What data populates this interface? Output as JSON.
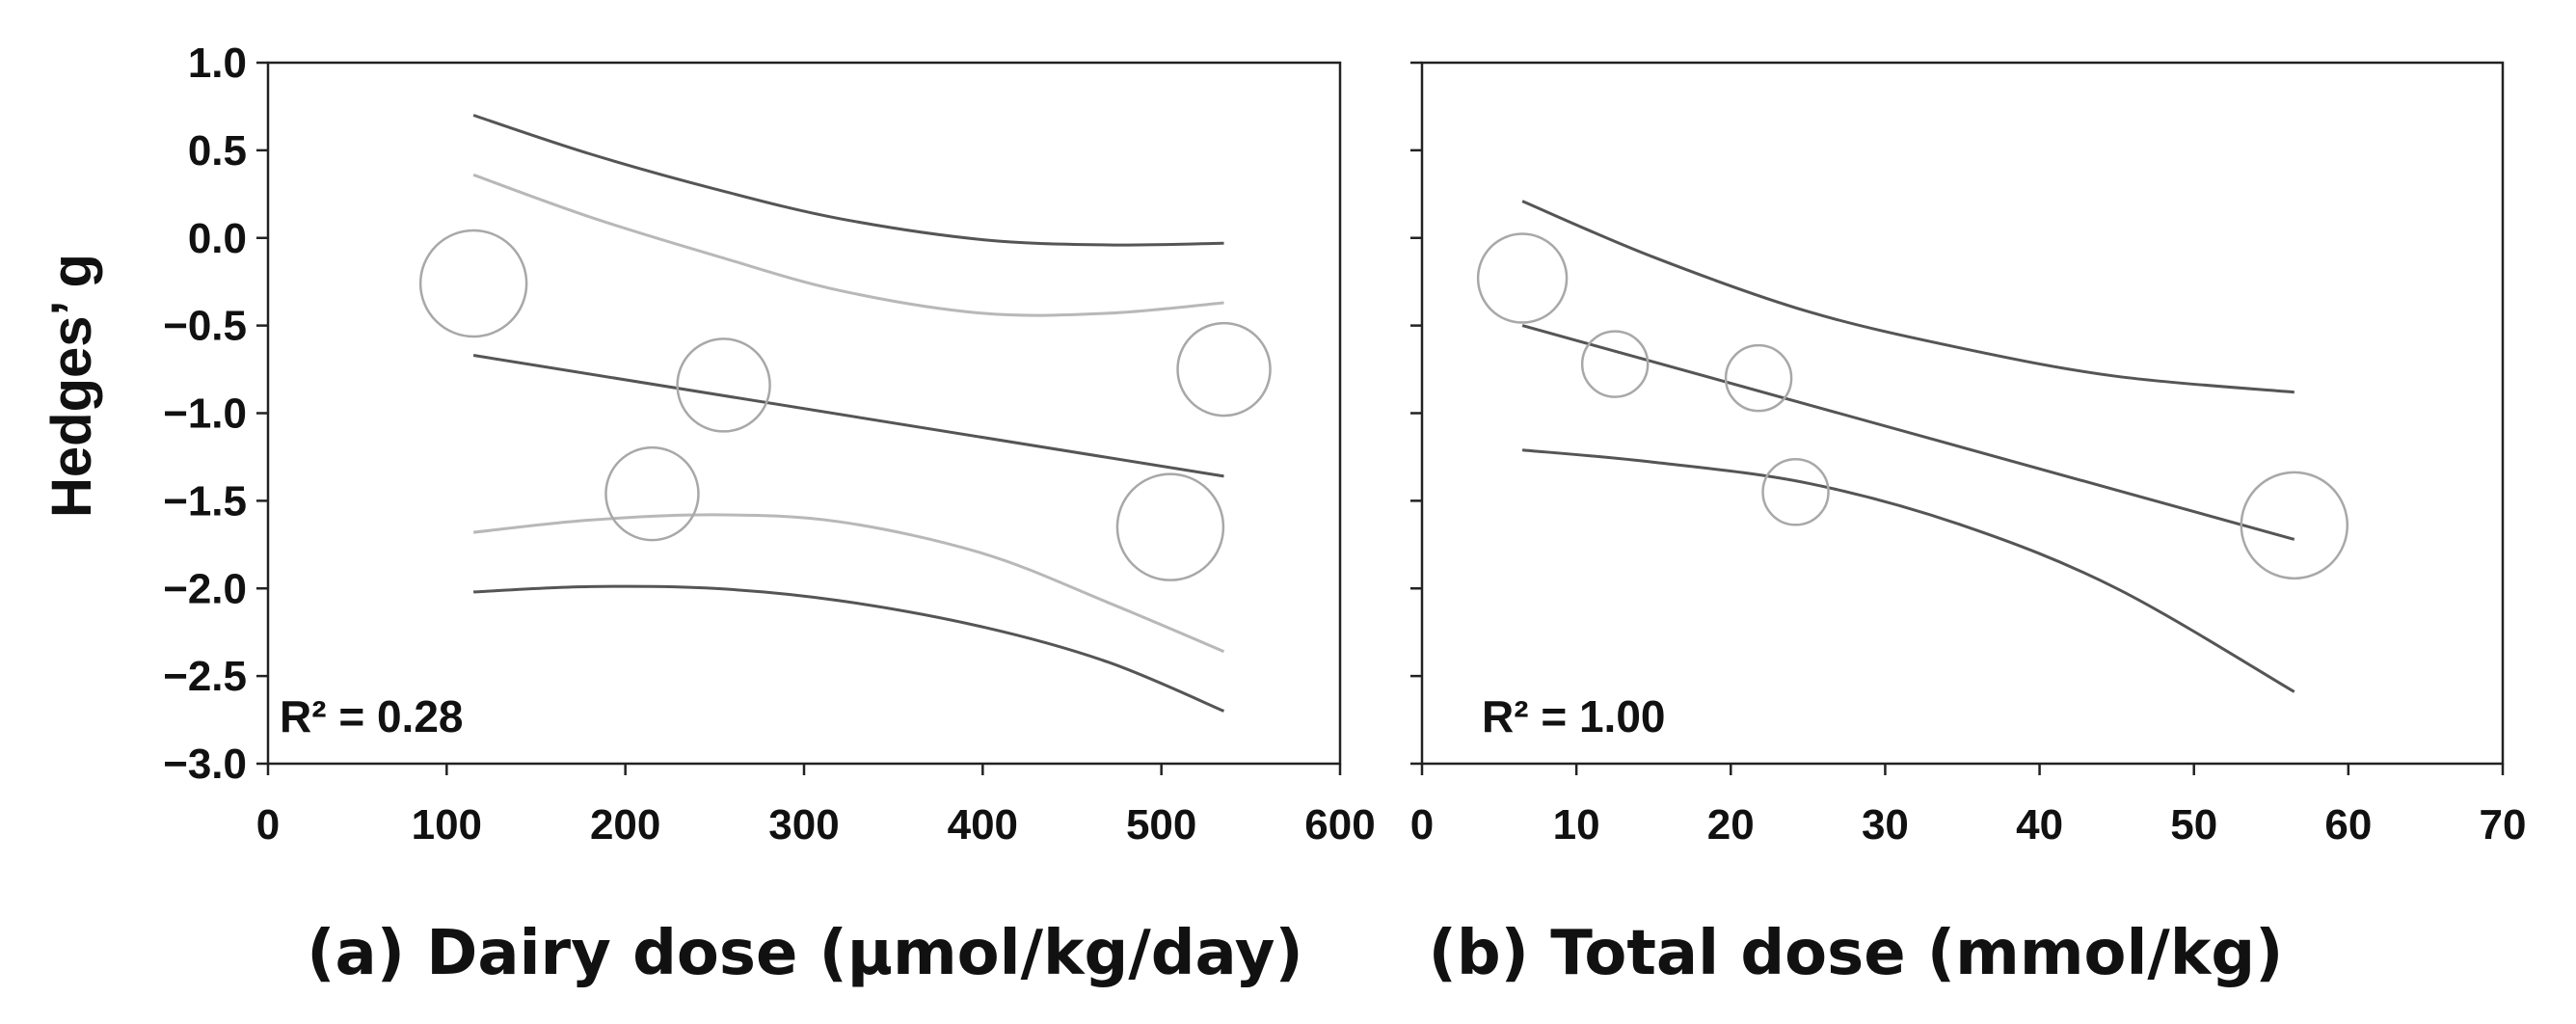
{
  "y_axis_title": "Hedges’ g",
  "colors": {
    "dark_line": "#555555",
    "light_line": "#b8b8b8",
    "circle": "#a8a8a8",
    "frame": "#222222",
    "text": "#111111"
  },
  "chart_data": [
    {
      "type": "scatter",
      "panel": "a",
      "caption": "(a) Dairy dose (μmol/kg/day)",
      "r2_label": "R² = 0.28",
      "xlim": [
        0,
        600
      ],
      "ylim": [
        -3.0,
        1.0
      ],
      "x_ticks": [
        "0",
        "100",
        "200",
        "300",
        "400",
        "500",
        "600"
      ],
      "y_ticks": [
        "1.0",
        "0.5",
        "0.0",
        "−0.5",
        "−1.0",
        "−1.5",
        "−2.0",
        "−2.5",
        "−3.0"
      ],
      "points": [
        {
          "x": 115,
          "y": -0.26,
          "size": "large"
        },
        {
          "x": 215,
          "y": -1.46,
          "size": "medium"
        },
        {
          "x": 255,
          "y": -0.84,
          "size": "medium"
        },
        {
          "x": 505,
          "y": -1.65,
          "size": "large"
        },
        {
          "x": 535,
          "y": -0.75,
          "size": "medium"
        }
      ],
      "series": [
        {
          "name": "regression",
          "style": "dark",
          "x": [
            115,
            535
          ],
          "y": [
            -0.67,
            -1.36
          ]
        },
        {
          "name": "outer-upper",
          "style": "dark",
          "x": [
            115,
            180,
            250,
            320,
            400,
            470,
            535
          ],
          "y": [
            0.7,
            0.48,
            0.28,
            0.11,
            -0.01,
            -0.04,
            -0.03
          ]
        },
        {
          "name": "outer-lower",
          "style": "dark",
          "x": [
            115,
            180,
            250,
            320,
            400,
            470,
            535
          ],
          "y": [
            -2.02,
            -1.99,
            -2.0,
            -2.07,
            -2.22,
            -2.42,
            -2.7
          ]
        },
        {
          "name": "inner-upper",
          "style": "light",
          "x": [
            115,
            180,
            250,
            320,
            400,
            470,
            535
          ],
          "y": [
            0.36,
            0.12,
            -0.1,
            -0.3,
            -0.43,
            -0.43,
            -0.37
          ]
        },
        {
          "name": "inner-lower",
          "style": "light",
          "x": [
            115,
            180,
            250,
            320,
            400,
            470,
            535
          ],
          "y": [
            -1.68,
            -1.61,
            -1.58,
            -1.62,
            -1.8,
            -2.08,
            -2.36
          ]
        }
      ]
    },
    {
      "type": "scatter",
      "panel": "b",
      "caption": "(b) Total dose (mmol/kg)",
      "r2_label": "R² = 1.00",
      "xlim": [
        0,
        70
      ],
      "ylim": [
        -3.0,
        1.0
      ],
      "x_ticks": [
        "0",
        "10",
        "20",
        "30",
        "40",
        "50",
        "60",
        "70"
      ],
      "points": [
        {
          "x": 6.5,
          "y": -0.23,
          "size": "medium"
        },
        {
          "x": 12.5,
          "y": -0.72,
          "size": "small"
        },
        {
          "x": 21.8,
          "y": -0.8,
          "size": "small"
        },
        {
          "x": 24.2,
          "y": -1.45,
          "size": "small"
        },
        {
          "x": 56.5,
          "y": -1.64,
          "size": "large"
        }
      ],
      "series": [
        {
          "name": "regression",
          "style": "dark",
          "x": [
            6.5,
            56.5
          ],
          "y": [
            -0.5,
            -1.72
          ]
        },
        {
          "name": "upper-band",
          "style": "dark",
          "x": [
            6.5,
            15,
            25,
            35,
            45,
            56.5
          ],
          "y": [
            0.21,
            -0.11,
            -0.42,
            -0.63,
            -0.79,
            -0.88
          ]
        },
        {
          "name": "lower-band",
          "style": "dark",
          "x": [
            6.5,
            15,
            25,
            35,
            45,
            56.5
          ],
          "y": [
            -1.21,
            -1.28,
            -1.4,
            -1.64,
            -2.0,
            -2.59
          ]
        }
      ]
    }
  ]
}
